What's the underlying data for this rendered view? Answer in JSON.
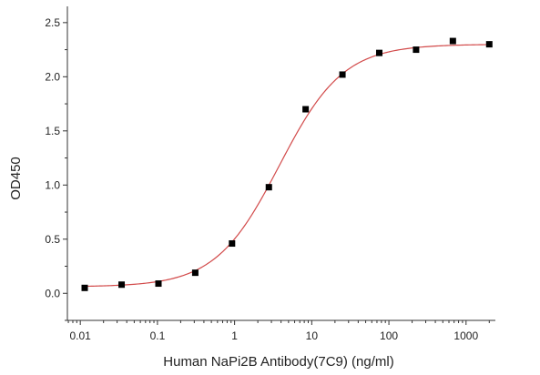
{
  "chart_data": {
    "type": "scatter",
    "xlabel": "Human NaPi2B Antibody(7C9) (ng/ml)",
    "ylabel": "OD450",
    "x_scale": "log",
    "xlim": [
      0.0068,
      2400
    ],
    "ylim": [
      -0.25,
      2.65
    ],
    "grid": false,
    "x_ticks": [
      0.01,
      0.1,
      1,
      10,
      100,
      1000
    ],
    "x_tick_labels": [
      "0.01",
      "0.1",
      "1",
      "10",
      "100",
      "1000"
    ],
    "y_ticks": [
      0.0,
      0.5,
      1.0,
      1.5,
      2.0,
      2.5
    ],
    "y_tick_labels": [
      "0.0",
      "0.5",
      "1.0",
      "1.5",
      "2.0",
      "2.5"
    ],
    "series": [
      {
        "type": "scatter",
        "marker": "square",
        "color": "#000000",
        "x": [
          0.0114,
          0.0343,
          0.103,
          0.309,
          0.926,
          2.78,
          8.33,
          25,
          75,
          225,
          675,
          2000
        ],
        "y": [
          0.05,
          0.08,
          0.09,
          0.19,
          0.46,
          0.98,
          1.7,
          2.02,
          2.22,
          2.25,
          2.33,
          2.3
        ]
      },
      {
        "type": "line",
        "fit": "sigmoidal",
        "color": "#d24a4a",
        "bottom": 0.06,
        "top": 2.3,
        "ec50": 3.8,
        "hill": 1.05
      }
    ]
  }
}
